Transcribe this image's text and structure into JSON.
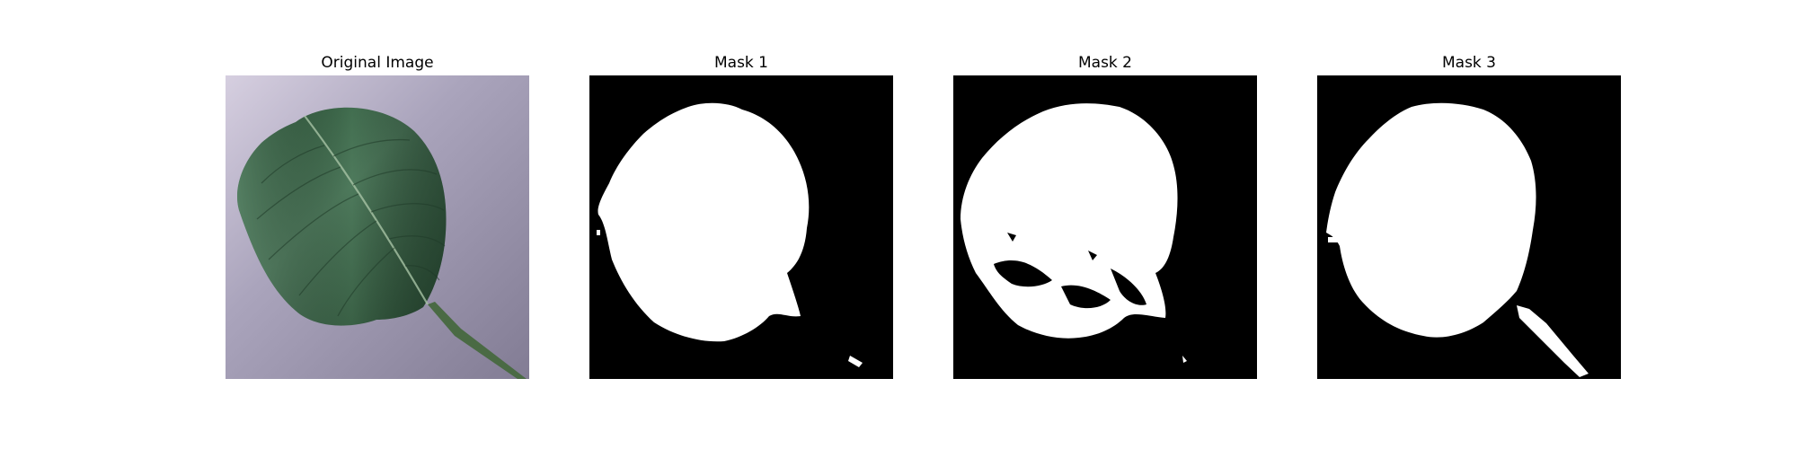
{
  "panels": [
    {
      "title": "Original Image"
    },
    {
      "title": "Mask 1"
    },
    {
      "title": "Mask 2"
    },
    {
      "title": "Mask 3"
    }
  ],
  "colors": {
    "background": "#ffffff",
    "mask_background": "#000000",
    "mask_foreground": "#ffffff",
    "leaf_dark": "#2f5a3a",
    "leaf_light": "#56806a",
    "surface": "#a8a2b8"
  }
}
